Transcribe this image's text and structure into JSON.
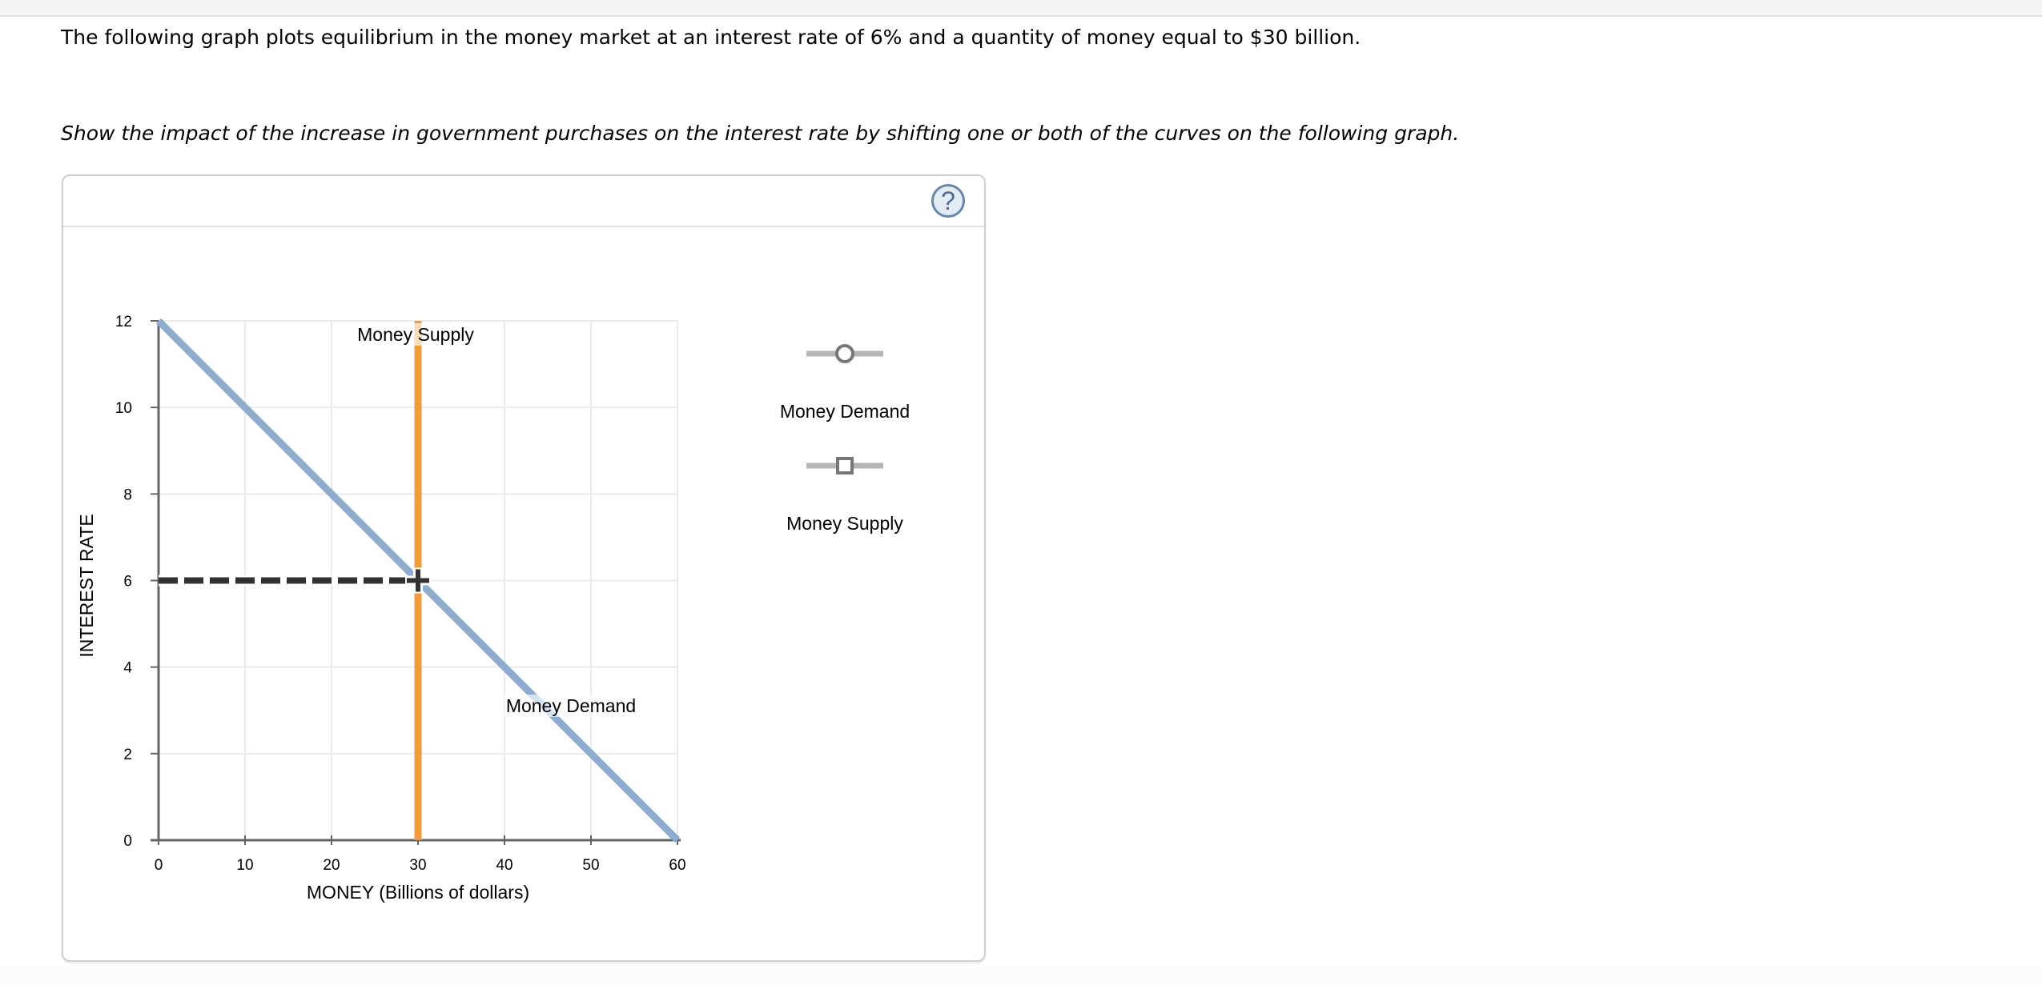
{
  "instructions": {
    "line1": "The following graph plots equilibrium in the money market at an interest rate of 6% and a quantity of money equal to $30 billion.",
    "line2": "Show the impact of the increase in government purchases on the interest rate by shifting one or both of the curves on the following graph."
  },
  "panel": {
    "help_label": "?"
  },
  "chart_data": {
    "type": "line",
    "title": "",
    "xlabel": "MONEY (Billions of dollars)",
    "ylabel": "INTEREST RATE",
    "xlim": [
      0,
      60
    ],
    "ylim": [
      0,
      12
    ],
    "xticks": [
      0,
      10,
      20,
      30,
      40,
      50,
      60
    ],
    "yticks": [
      0,
      2,
      4,
      6,
      8,
      10,
      12
    ],
    "grid": true,
    "series": [
      {
        "name": "Money Demand",
        "color": "#8eacd0",
        "x": [
          0,
          60
        ],
        "y": [
          12,
          0
        ],
        "label_at": [
          48,
          3
        ]
      },
      {
        "name": "Money Supply",
        "color": "#f09c3c",
        "x": [
          30,
          30
        ],
        "y": [
          0,
          12
        ],
        "label_at": [
          30,
          11.6
        ]
      }
    ],
    "equilibrium": {
      "x": 30,
      "y": 6,
      "guide_color": "#333333"
    },
    "legend": {
      "position": "right",
      "items": [
        {
          "label": "Money Demand",
          "marker": "circle"
        },
        {
          "label": "Money Supply",
          "marker": "square"
        }
      ]
    }
  }
}
